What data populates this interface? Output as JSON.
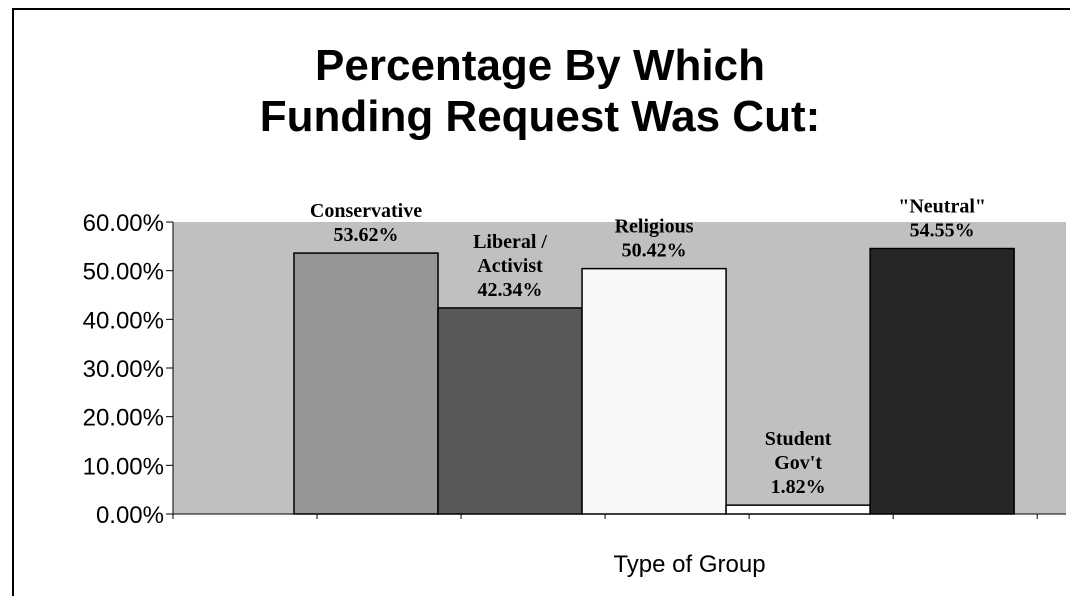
{
  "chart_data": {
    "type": "bar",
    "title_lines": [
      "Percentage By Which",
      "Funding Request Was Cut:"
    ],
    "xlabel": "Type of Group",
    "ylabel": "",
    "ylim": [
      0,
      60
    ],
    "yticks": [
      "0.00%",
      "10.00%",
      "20.00%",
      "30.00%",
      "40.00%",
      "50.00%",
      "60.00%"
    ],
    "ytick_values": [
      0,
      10,
      20,
      30,
      40,
      50,
      60
    ],
    "grid": false,
    "legend": "none",
    "plot_background": "#c0c0c0",
    "categories": [
      "Conservative",
      "Liberal / Activist",
      "Religious",
      "Student Gov't",
      "\"Neutral\""
    ],
    "values": [
      53.62,
      42.34,
      50.42,
      1.82,
      54.55
    ],
    "bar_colors": [
      "#969696",
      "#595959",
      "#f8f8f8",
      "#ffffff",
      "#262626"
    ],
    "data_labels": [
      [
        "Conservative",
        "53.62%"
      ],
      [
        "Liberal /",
        "Activist",
        "42.34%"
      ],
      [
        "Religious",
        "50.42%"
      ],
      [
        "Student",
        "Gov't",
        "1.82%"
      ],
      [
        "\"Neutral\"",
        "54.55%"
      ]
    ]
  }
}
